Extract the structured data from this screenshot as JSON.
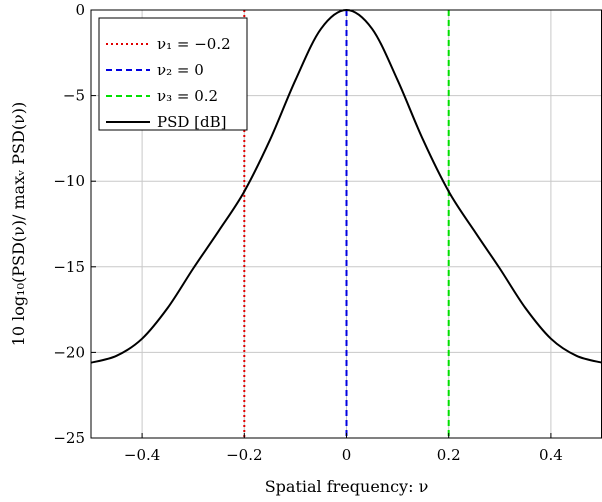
{
  "chart_data": {
    "type": "line",
    "xlabel": "Spatial frequency: ν",
    "ylabel": "10 log₁₀(PSD(ν)/ maxᵥ PSD(ν))",
    "xlim": [
      -0.5,
      0.5
    ],
    "ylim": [
      -25,
      0
    ],
    "x_ticks": [
      -0.4,
      -0.2,
      0,
      0.2,
      0.4
    ],
    "x_tick_labels": [
      "−0.4",
      "−0.2",
      "0",
      "0.2",
      "0.4"
    ],
    "y_ticks": [
      0,
      -5,
      -10,
      -15,
      -20,
      -25
    ],
    "y_tick_labels": [
      "0",
      "−5",
      "−10",
      "−15",
      "−20",
      "−25"
    ],
    "grid": true,
    "legend_position": "top-left",
    "vertical_lines": [
      {
        "name": "ν₁ = −0.2",
        "x": -0.2,
        "color": "#e00000",
        "style": "dotted"
      },
      {
        "name": "ν₂ = 0",
        "x": 0,
        "color": "#0000e0",
        "style": "dashed"
      },
      {
        "name": "ν₃ = 0.2",
        "x": 0.2,
        "color": "#00e000",
        "style": "dashed"
      }
    ],
    "series": [
      {
        "name": "PSD [dB]",
        "color": "#000000",
        "x": [
          -0.5,
          -0.45,
          -0.4,
          -0.35,
          -0.3,
          -0.25,
          -0.2,
          -0.15,
          -0.1,
          -0.05,
          0,
          0.05,
          0.1,
          0.15,
          0.2,
          0.25,
          0.3,
          0.35,
          0.4,
          0.45,
          0.5
        ],
        "y": [
          -20.6,
          -20.2,
          -19.2,
          -17.4,
          -15.1,
          -12.9,
          -10.6,
          -7.6,
          -4.1,
          -1.1,
          0,
          -1.1,
          -4.1,
          -7.6,
          -10.6,
          -12.9,
          -15.1,
          -17.4,
          -19.2,
          -20.2,
          -20.6
        ]
      }
    ]
  }
}
